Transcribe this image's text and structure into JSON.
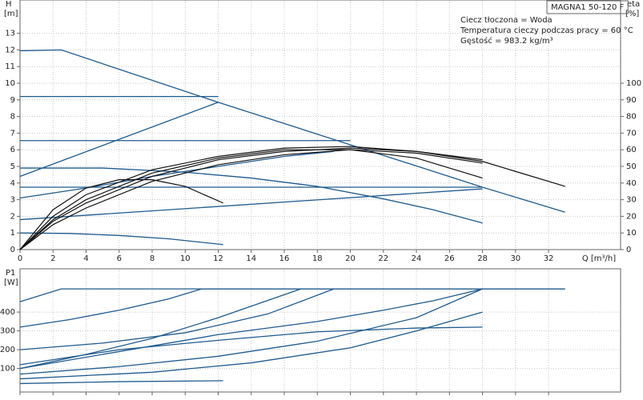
{
  "chart_data": [
    {
      "type": "line",
      "title": "MAGNA1 50-120 F",
      "annotations": [
        "Ciecz tłoczona = Woda",
        "Temperatura cieczy podczas pracy = 60 °C",
        "Gęstość = 983.2 kg/m³"
      ],
      "y_label": "H",
      "y_unit": "[m]",
      "y2_label": "eta",
      "y2_unit": "[%]",
      "x_label": "Q [m³/h]",
      "xlim": [
        0,
        36.36
      ],
      "xticks": [
        0,
        2,
        4,
        6,
        8,
        10,
        12,
        14,
        16,
        18,
        20,
        22,
        24,
        26,
        28,
        30,
        32
      ],
      "ylim": [
        0,
        15
      ],
      "yticks": [
        0,
        1,
        2,
        3,
        4,
        5,
        6,
        7,
        8,
        9,
        10,
        11,
        12,
        13
      ],
      "y2lim": [
        0,
        150
      ],
      "y2ticks": [
        0,
        10,
        20,
        30,
        40,
        50,
        60,
        70,
        80,
        90,
        100
      ],
      "grid": true,
      "series": [
        {
          "color": "#1f5a8f",
          "x": [
            0,
            2.5,
            12,
            20,
            28,
            33
          ],
          "values": [
            11.95,
            12,
            8.85,
            6.3,
            3.75,
            2.25
          ]
        },
        {
          "color": "#1f5a8f",
          "x": [
            0,
            12
          ],
          "values": [
            9.2,
            9.2
          ]
        },
        {
          "color": "#1f5a8f",
          "x": [
            0,
            12
          ],
          "values": [
            4.4,
            8.85
          ]
        },
        {
          "color": "#1f5a8f",
          "x": [
            0,
            20
          ],
          "values": [
            6.55,
            6.55
          ]
        },
        {
          "color": "#1f5a8f",
          "x": [
            0,
            28
          ],
          "values": [
            3.75,
            3.75
          ]
        },
        {
          "color": "#1f5a8f",
          "x": [
            0,
            4,
            8,
            12,
            16,
            19
          ],
          "values": [
            3.1,
            3.7,
            4.4,
            5.0,
            5.6,
            5.9
          ]
        },
        {
          "color": "#1f5a8f",
          "x": [
            0,
            5,
            10,
            14,
            18,
            22,
            25,
            28
          ],
          "values": [
            4.9,
            4.9,
            4.65,
            4.3,
            3.8,
            3.05,
            2.4,
            1.6
          ]
        },
        {
          "color": "#1f5a8f",
          "x": [
            0,
            28
          ],
          "values": [
            1.8,
            3.65
          ]
        },
        {
          "color": "#1f5a8f",
          "x": [
            0,
            3,
            6,
            9,
            12.3
          ],
          "values": [
            1.0,
            0.97,
            0.85,
            0.65,
            0.3
          ]
        },
        {
          "color": "#111111",
          "axis": "y2",
          "x": [
            0,
            2,
            4,
            8,
            12,
            16,
            20,
            24,
            28,
            30,
            33
          ],
          "values": [
            0,
            20,
            33,
            48,
            56,
            61,
            62,
            59,
            53,
            47,
            38
          ]
        },
        {
          "color": "#111111",
          "axis": "y2",
          "x": [
            0,
            2,
            4,
            8,
            12,
            16,
            20,
            24,
            28
          ],
          "values": [
            0,
            17,
            28,
            44,
            54,
            59,
            61,
            59,
            54
          ]
        },
        {
          "color": "#111111",
          "axis": "y2",
          "x": [
            0,
            2,
            4,
            8,
            12,
            16,
            20,
            24,
            28
          ],
          "values": [
            0,
            15,
            25,
            41,
            51,
            57,
            60,
            58,
            52
          ]
        },
        {
          "color": "#111111",
          "axis": "y2",
          "x": [
            0,
            2,
            4,
            6,
            8,
            10,
            12.3
          ],
          "values": [
            0,
            24,
            37,
            42,
            42,
            38,
            28
          ]
        },
        {
          "color": "#111111",
          "axis": "y2",
          "x": [
            0,
            2,
            4,
            8,
            12,
            16,
            20,
            24,
            28
          ],
          "values": [
            0,
            18,
            30,
            46,
            55,
            60,
            60,
            55,
            43
          ]
        }
      ]
    },
    {
      "type": "line",
      "y_label": "P1",
      "y_unit": "[W]",
      "xlim": [
        0,
        36.36
      ],
      "xticks": [
        0,
        2,
        4,
        6,
        8,
        10,
        12,
        14,
        16,
        18,
        20,
        22,
        24,
        26,
        28,
        30,
        32
      ],
      "ylim": [
        -25,
        630
      ],
      "yticks": [
        100,
        200,
        300,
        400
      ],
      "grid": true,
      "series": [
        {
          "color": "#1f5a8f",
          "x": [
            0,
            2.5,
            33
          ],
          "values": [
            455,
            523,
            523
          ]
        },
        {
          "color": "#1f5a8f",
          "x": [
            0,
            3,
            6,
            9,
            11,
            33
          ],
          "values": [
            320,
            360,
            410,
            470,
            523,
            523
          ]
        },
        {
          "color": "#1f5a8f",
          "x": [
            0,
            5,
            10,
            15,
            19
          ],
          "values": [
            200,
            235,
            290,
            390,
            523
          ]
        },
        {
          "color": "#1f5a8f",
          "x": [
            0,
            4,
            8,
            12,
            17
          ],
          "values": [
            100,
            175,
            260,
            370,
            523
          ]
        },
        {
          "color": "#1f5a8f",
          "x": [
            0,
            6,
            12,
            18,
            22,
            25,
            28
          ],
          "values": [
            100,
            190,
            280,
            350,
            410,
            460,
            523
          ]
        },
        {
          "color": "#1f5a8f",
          "x": [
            0,
            6,
            12,
            18,
            24,
            28
          ],
          "values": [
            70,
            110,
            165,
            245,
            370,
            523
          ]
        },
        {
          "color": "#1f5a8f",
          "x": [
            0,
            8,
            14,
            20,
            24,
            28
          ],
          "values": [
            45,
            80,
            130,
            210,
            300,
            400
          ]
        },
        {
          "color": "#1f5a8f",
          "x": [
            0,
            6,
            12,
            18,
            24,
            28
          ],
          "values": [
            120,
            200,
            250,
            295,
            315,
            320
          ]
        },
        {
          "color": "#1f5a8f",
          "x": [
            0,
            6,
            12.3
          ],
          "values": [
            20,
            30,
            35
          ]
        }
      ]
    }
  ]
}
